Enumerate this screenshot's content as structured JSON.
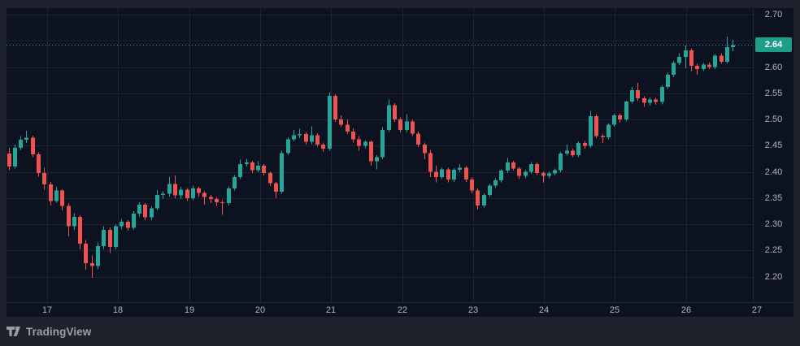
{
  "footer": {
    "brand": "TradingView"
  },
  "chart_data": {
    "type": "candlestick",
    "title": "",
    "last_price_label": "2.64",
    "legend_position": "none",
    "grid": true,
    "y_range_visible": [
      2.1512,
      2.7124
    ],
    "y_tick_step": 0.05,
    "y_ticks": [
      {
        "label": "2.70",
        "price": 2.7
      },
      {
        "label": "2.60",
        "price": 2.6
      },
      {
        "label": "2.55",
        "price": 2.55
      },
      {
        "label": "2.50",
        "price": 2.5
      },
      {
        "label": "2.45",
        "price": 2.45
      },
      {
        "label": "2.40",
        "price": 2.4
      },
      {
        "label": "2.35",
        "price": 2.35
      },
      {
        "label": "2.30",
        "price": 2.3
      },
      {
        "label": "2.25",
        "price": 2.25
      },
      {
        "label": "2.20",
        "price": 2.2
      }
    ],
    "x_ticks": [
      {
        "label": "17",
        "index": 0
      },
      {
        "label": "18",
        "index": 1
      },
      {
        "label": "19",
        "index": 2
      },
      {
        "label": "20",
        "index": 3
      },
      {
        "label": "21",
        "index": 4
      },
      {
        "label": "22",
        "index": 5
      },
      {
        "label": "23",
        "index": 6
      },
      {
        "label": "24",
        "index": 7
      },
      {
        "label": "25",
        "index": 8
      },
      {
        "label": "26",
        "index": 9
      },
      {
        "label": "27",
        "index": 10
      }
    ],
    "colors": {
      "background": "#1e222d",
      "plot_background": "#0d1220",
      "grid": "#1e2433",
      "up": "#26a69a",
      "down": "#ef5350",
      "last_price_line": "#26a69a",
      "badge_background": "#1d9e8b",
      "badge_text": "#ffffff",
      "axis_text": "#b2b5be",
      "footer_text": "#9aa0aa"
    },
    "candles": [
      [
        2.435,
        2.446,
        2.403,
        2.41
      ],
      [
        2.41,
        2.452,
        2.406,
        2.446
      ],
      [
        2.446,
        2.468,
        2.441,
        2.461
      ],
      [
        2.461,
        2.478,
        2.455,
        2.465
      ],
      [
        2.465,
        2.469,
        2.428,
        2.433
      ],
      [
        2.433,
        2.437,
        2.391,
        2.398
      ],
      [
        2.398,
        2.408,
        2.366,
        2.376
      ],
      [
        2.376,
        2.381,
        2.336,
        2.344
      ],
      [
        2.344,
        2.371,
        2.341,
        2.364
      ],
      [
        2.364,
        2.367,
        2.326,
        2.335
      ],
      [
        2.335,
        2.34,
        2.277,
        2.296
      ],
      [
        2.296,
        2.321,
        2.289,
        2.314
      ],
      [
        2.314,
        2.317,
        2.252,
        2.263
      ],
      [
        2.263,
        2.27,
        2.213,
        2.226
      ],
      [
        2.226,
        2.24,
        2.198,
        2.22
      ],
      [
        2.22,
        2.265,
        2.214,
        2.258
      ],
      [
        2.258,
        2.296,
        2.252,
        2.289
      ],
      [
        2.289,
        2.294,
        2.245,
        2.257
      ],
      [
        2.257,
        2.3,
        2.252,
        2.296
      ],
      [
        2.296,
        2.31,
        2.29,
        2.305
      ],
      [
        2.305,
        2.308,
        2.288,
        2.293
      ],
      [
        2.293,
        2.325,
        2.289,
        2.32
      ],
      [
        2.32,
        2.342,
        2.315,
        2.337
      ],
      [
        2.337,
        2.34,
        2.308,
        2.313
      ],
      [
        2.313,
        2.334,
        2.308,
        2.33
      ],
      [
        2.33,
        2.365,
        2.326,
        2.356
      ],
      [
        2.356,
        2.363,
        2.348,
        2.358
      ],
      [
        2.358,
        2.39,
        2.353,
        2.377
      ],
      [
        2.377,
        2.393,
        2.35,
        2.355
      ],
      [
        2.355,
        2.371,
        2.348,
        2.366
      ],
      [
        2.366,
        2.369,
        2.344,
        2.35
      ],
      [
        2.35,
        2.374,
        2.346,
        2.368
      ],
      [
        2.368,
        2.371,
        2.352,
        2.36
      ],
      [
        2.36,
        2.363,
        2.337,
        2.352
      ],
      [
        2.352,
        2.356,
        2.34,
        2.348
      ],
      [
        2.348,
        2.352,
        2.335,
        2.342
      ],
      [
        2.342,
        2.346,
        2.318,
        2.34
      ],
      [
        2.34,
        2.372,
        2.336,
        2.368
      ],
      [
        2.368,
        2.394,
        2.364,
        2.39
      ],
      [
        2.39,
        2.423,
        2.386,
        2.415
      ],
      [
        2.415,
        2.425,
        2.41,
        2.418
      ],
      [
        2.418,
        2.421,
        2.398,
        2.403
      ],
      [
        2.403,
        2.42,
        2.399,
        2.412
      ],
      [
        2.412,
        2.415,
        2.393,
        2.398
      ],
      [
        2.398,
        2.401,
        2.373,
        2.378
      ],
      [
        2.378,
        2.381,
        2.35,
        2.362
      ],
      [
        2.362,
        2.44,
        2.358,
        2.436
      ],
      [
        2.436,
        2.466,
        2.432,
        2.462
      ],
      [
        2.462,
        2.48,
        2.458,
        2.47
      ],
      [
        2.47,
        2.482,
        2.464,
        2.472
      ],
      [
        2.472,
        2.476,
        2.452,
        2.457
      ],
      [
        2.457,
        2.487,
        2.453,
        2.47
      ],
      [
        2.47,
        2.474,
        2.448,
        2.452
      ],
      [
        2.452,
        2.456,
        2.438,
        2.444
      ],
      [
        2.444,
        2.552,
        2.44,
        2.545
      ],
      [
        2.545,
        2.548,
        2.495,
        2.5
      ],
      [
        2.5,
        2.508,
        2.485,
        2.49
      ],
      [
        2.49,
        2.5,
        2.472,
        2.477
      ],
      [
        2.477,
        2.483,
        2.456,
        2.462
      ],
      [
        2.462,
        2.468,
        2.44,
        2.45
      ],
      [
        2.45,
        2.46,
        2.445,
        2.457
      ],
      [
        2.457,
        2.46,
        2.412,
        2.42
      ],
      [
        2.42,
        2.432,
        2.405,
        2.428
      ],
      [
        2.428,
        2.485,
        2.424,
        2.48
      ],
      [
        2.48,
        2.538,
        2.476,
        2.527
      ],
      [
        2.527,
        2.531,
        2.495,
        2.5
      ],
      [
        2.5,
        2.504,
        2.475,
        2.48
      ],
      [
        2.48,
        2.51,
        2.476,
        2.496
      ],
      [
        2.496,
        2.499,
        2.468,
        2.473
      ],
      [
        2.473,
        2.477,
        2.447,
        2.452
      ],
      [
        2.452,
        2.456,
        2.424,
        2.436
      ],
      [
        2.436,
        2.441,
        2.39,
        2.4
      ],
      [
        2.4,
        2.412,
        2.38,
        2.39
      ],
      [
        2.39,
        2.408,
        2.386,
        2.405
      ],
      [
        2.405,
        2.408,
        2.38,
        2.385
      ],
      [
        2.385,
        2.407,
        2.381,
        2.404
      ],
      [
        2.404,
        2.415,
        2.399,
        2.408
      ],
      [
        2.408,
        2.411,
        2.381,
        2.385
      ],
      [
        2.385,
        2.389,
        2.359,
        2.364
      ],
      [
        2.364,
        2.368,
        2.328,
        2.336
      ],
      [
        2.336,
        2.359,
        2.332,
        2.356
      ],
      [
        2.356,
        2.377,
        2.352,
        2.374
      ],
      [
        2.374,
        2.388,
        2.37,
        2.384
      ],
      [
        2.384,
        2.405,
        2.38,
        2.402
      ],
      [
        2.402,
        2.426,
        2.398,
        2.418
      ],
      [
        2.418,
        2.421,
        2.402,
        2.406
      ],
      [
        2.406,
        2.409,
        2.386,
        2.392
      ],
      [
        2.392,
        2.403,
        2.388,
        2.4
      ],
      [
        2.4,
        2.419,
        2.396,
        2.415
      ],
      [
        2.415,
        2.418,
        2.394,
        2.398
      ],
      [
        2.398,
        2.401,
        2.379,
        2.392
      ],
      [
        2.392,
        2.4,
        2.388,
        2.397
      ],
      [
        2.397,
        2.406,
        2.393,
        2.403
      ],
      [
        2.403,
        2.438,
        2.399,
        2.435
      ],
      [
        2.435,
        2.452,
        2.431,
        2.44
      ],
      [
        2.44,
        2.444,
        2.428,
        2.432
      ],
      [
        2.432,
        2.458,
        2.428,
        2.455
      ],
      [
        2.455,
        2.459,
        2.444,
        2.45
      ],
      [
        2.45,
        2.516,
        2.446,
        2.506
      ],
      [
        2.506,
        2.51,
        2.464,
        2.468
      ],
      [
        2.468,
        2.472,
        2.455,
        2.466
      ],
      [
        2.466,
        2.492,
        2.462,
        2.49
      ],
      [
        2.49,
        2.511,
        2.486,
        2.508
      ],
      [
        2.508,
        2.512,
        2.494,
        2.5
      ],
      [
        2.5,
        2.536,
        2.496,
        2.534
      ],
      [
        2.534,
        2.562,
        2.53,
        2.556
      ],
      [
        2.556,
        2.57,
        2.536,
        2.54
      ],
      [
        2.54,
        2.544,
        2.524,
        2.532
      ],
      [
        2.532,
        2.542,
        2.526,
        2.538
      ],
      [
        2.538,
        2.541,
        2.528,
        2.533
      ],
      [
        2.533,
        2.565,
        2.529,
        2.562
      ],
      [
        2.562,
        2.589,
        2.558,
        2.585
      ],
      [
        2.585,
        2.612,
        2.581,
        2.608
      ],
      [
        2.608,
        2.626,
        2.604,
        2.619
      ],
      [
        2.619,
        2.641,
        2.598,
        2.632
      ],
      [
        2.632,
        2.636,
        2.592,
        2.602
      ],
      [
        2.602,
        2.606,
        2.585,
        2.596
      ],
      [
        2.596,
        2.608,
        2.592,
        2.605
      ],
      [
        2.605,
        2.609,
        2.596,
        2.6
      ],
      [
        2.6,
        2.625,
        2.596,
        2.622
      ],
      [
        2.622,
        2.626,
        2.606,
        2.61
      ],
      [
        2.61,
        2.658,
        2.606,
        2.638
      ],
      [
        2.638,
        2.652,
        2.63,
        2.642
      ]
    ]
  }
}
